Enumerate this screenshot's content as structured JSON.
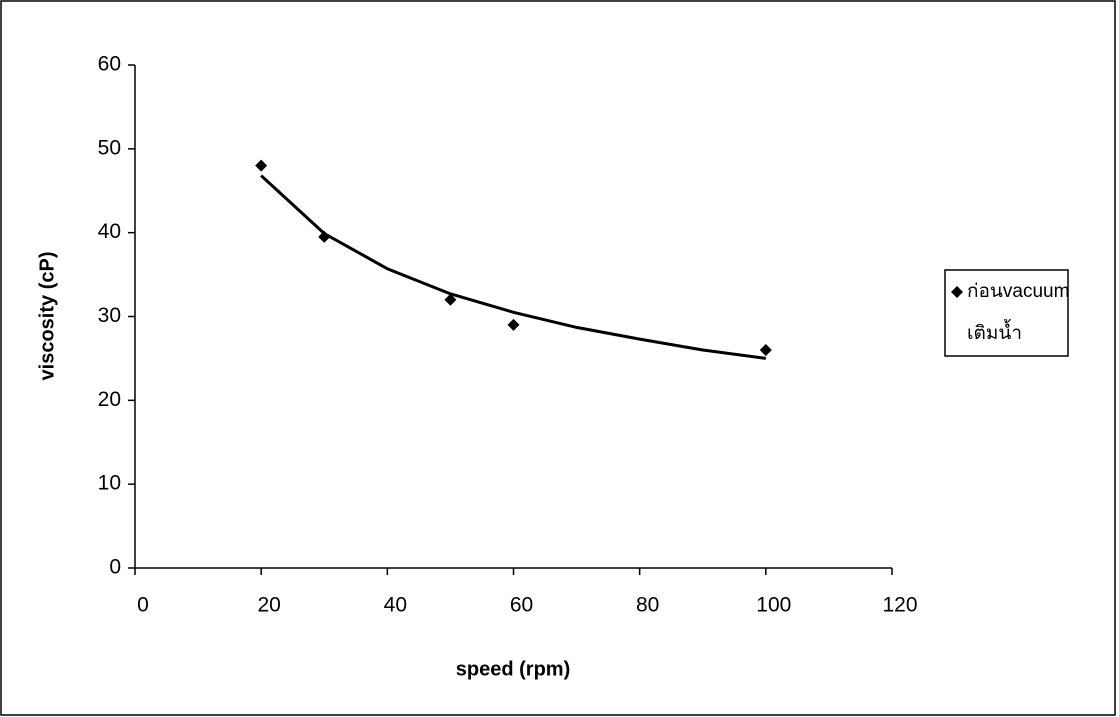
{
  "chart_data": {
    "type": "scatter",
    "x_label": "speed (rpm)",
    "y_label": "viscosity (cP)",
    "series": [
      {
        "name": "ก่อนvacuum",
        "color": "#000000",
        "marker": "diamond",
        "x": [
          20,
          30,
          50,
          60,
          100
        ],
        "values": [
          48,
          39.5,
          32,
          29,
          26
        ]
      },
      {
        "name": "เติมน้ำ",
        "color": "#000000",
        "marker": "none",
        "x": [],
        "values": []
      }
    ],
    "trendline": {
      "color": "#000000",
      "x": [
        20,
        30,
        40,
        50,
        60,
        70,
        80,
        90,
        100
      ],
      "values": [
        46.8,
        39.9,
        35.7,
        32.7,
        30.5,
        28.7,
        27.3,
        26.0,
        25.0
      ]
    },
    "xlim": [
      0,
      120
    ],
    "xticks": [
      0,
      20,
      40,
      60,
      80,
      100,
      120
    ],
    "ylim": [
      0,
      60
    ],
    "yticks": [
      0,
      10,
      20,
      30,
      40,
      50,
      60
    ],
    "grid": false,
    "legend": "right"
  }
}
